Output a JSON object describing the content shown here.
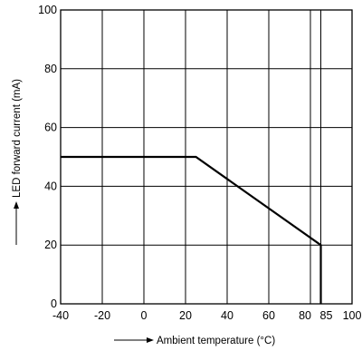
{
  "chart_data": {
    "type": "line",
    "title": "",
    "xlabel": "Ambient temperature (°C)",
    "ylabel": "LED forward current (mA)",
    "xlim": [
      -40,
      100
    ],
    "ylim": [
      0,
      100
    ],
    "grid": true,
    "x_ticks": [
      {
        "value": -40,
        "label": "-40"
      },
      {
        "value": -20,
        "label": "-20"
      },
      {
        "value": 0,
        "label": "0"
      },
      {
        "value": 20,
        "label": "20"
      },
      {
        "value": 40,
        "label": "40"
      },
      {
        "value": 60,
        "label": "60"
      },
      {
        "value": 80,
        "label": "80"
      },
      {
        "value": 85,
        "label": "85"
      },
      {
        "value": 100,
        "label": "100"
      }
    ],
    "y_ticks": [
      {
        "value": 0,
        "label": "0"
      },
      {
        "value": 20,
        "label": "20"
      },
      {
        "value": 40,
        "label": "40"
      },
      {
        "value": 60,
        "label": "60"
      },
      {
        "value": 80,
        "label": "80"
      },
      {
        "value": 100,
        "label": "100"
      }
    ],
    "series": [
      {
        "x": [
          -40,
          25,
          85,
          85
        ],
        "y": [
          50,
          50,
          20,
          0
        ]
      }
    ]
  }
}
